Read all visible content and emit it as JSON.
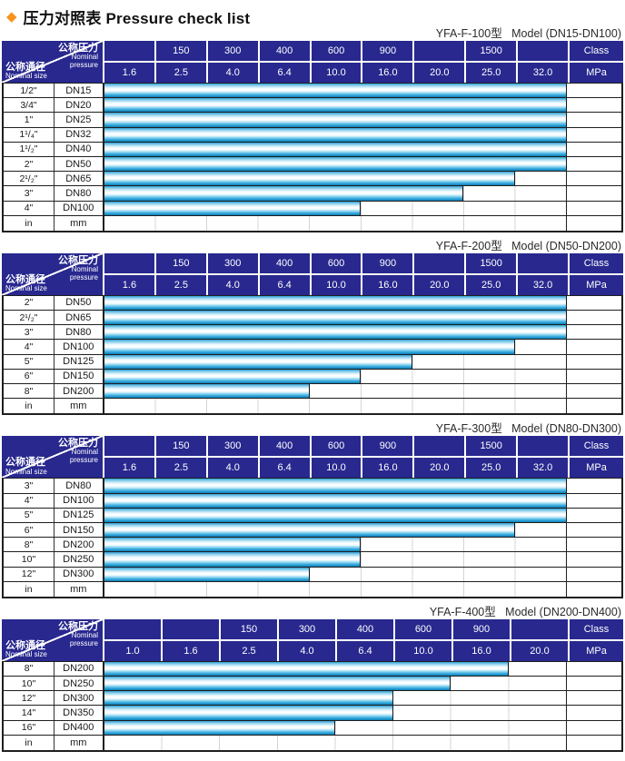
{
  "page": {
    "title": {
      "diamond_icon": "◆",
      "text": "压力对照表 Pressure check list"
    },
    "colors": {
      "header_navy": "#28288f",
      "bar_cyan": "#29a7e0",
      "bar_edge_dark": "#147bad",
      "accent_orange": "#f7941d",
      "grid_black": "#1f1f1f"
    }
  },
  "header_labels": {
    "pressure_cn": "公称压力",
    "pressure_en_1": "Nominal",
    "pressure_en_2": "pressure",
    "size_cn": "公称通径",
    "size_en": "Nominal size"
  },
  "tables": [
    {
      "subtitle": "YFA-F-100型   Model (DN15-DN100)",
      "class_row": [
        "",
        "150",
        "300",
        "400",
        "600",
        "900",
        "",
        "1500",
        "",
        "Class"
      ],
      "mpa_row": [
        "1.6",
        "2.5",
        "4.0",
        "6.4",
        "10.0",
        "16.0",
        "20.0",
        "25.0",
        "32.0",
        "MPa"
      ],
      "rows": [
        {
          "inch": "1/2\"",
          "dn": "DN15",
          "bar_cols": 9,
          "max_mpa": "32.0"
        },
        {
          "inch": "3/4\"",
          "dn": "DN20",
          "bar_cols": 9,
          "max_mpa": "32.0"
        },
        {
          "inch": "1\"",
          "dn": "DN25",
          "bar_cols": 9,
          "max_mpa": "32.0"
        },
        {
          "inch": "1¹/₄\"",
          "dn": "DN32",
          "bar_cols": 9,
          "max_mpa": "32.0"
        },
        {
          "inch": "1¹/₂\"",
          "dn": "DN40",
          "bar_cols": 9,
          "max_mpa": "32.0"
        },
        {
          "inch": "2\"",
          "dn": "DN50",
          "bar_cols": 9,
          "max_mpa": "32.0"
        },
        {
          "inch": "2¹/₂\"",
          "dn": "DN65",
          "bar_cols": 8,
          "max_mpa": "25.0"
        },
        {
          "inch": "3\"",
          "dn": "DN80",
          "bar_cols": 7,
          "max_mpa": "20.0"
        },
        {
          "inch": "4\"",
          "dn": "DN100",
          "bar_cols": 5,
          "max_mpa": "10.0"
        },
        {
          "inch": "in",
          "dn": "mm",
          "bar_cols": 0
        }
      ]
    },
    {
      "subtitle": "YFA-F-200型   Model (DN50-DN200)",
      "class_row": [
        "",
        "150",
        "300",
        "400",
        "600",
        "900",
        "",
        "1500",
        "",
        "Class"
      ],
      "mpa_row": [
        "1.6",
        "2.5",
        "4.0",
        "6.4",
        "10.0",
        "16.0",
        "20.0",
        "25.0",
        "32.0",
        "MPa"
      ],
      "rows": [
        {
          "inch": "2\"",
          "dn": "DN50",
          "bar_cols": 9,
          "max_mpa": "32.0"
        },
        {
          "inch": "2¹/₂\"",
          "dn": "DN65",
          "bar_cols": 9,
          "max_mpa": "32.0"
        },
        {
          "inch": "3\"",
          "dn": "DN80",
          "bar_cols": 9,
          "max_mpa": "32.0"
        },
        {
          "inch": "4\"",
          "dn": "DN100",
          "bar_cols": 8,
          "max_mpa": "25.0"
        },
        {
          "inch": "5\"",
          "dn": "DN125",
          "bar_cols": 6,
          "max_mpa": "16.0"
        },
        {
          "inch": "6\"",
          "dn": "DN150",
          "bar_cols": 5,
          "max_mpa": "10.0"
        },
        {
          "inch": "8\"",
          "dn": "DN200",
          "bar_cols": 4,
          "max_mpa": "6.4"
        },
        {
          "inch": "in",
          "dn": "mm",
          "bar_cols": 0
        }
      ]
    },
    {
      "subtitle": "YFA-F-300型   Model (DN80-DN300)",
      "class_row": [
        "",
        "150",
        "300",
        "400",
        "600",
        "900",
        "",
        "1500",
        "",
        "Class"
      ],
      "mpa_row": [
        "1.6",
        "2.5",
        "4.0",
        "6.4",
        "10.0",
        "16.0",
        "20.0",
        "25.0",
        "32.0",
        "MPa"
      ],
      "rows": [
        {
          "inch": "3\"",
          "dn": "DN80",
          "bar_cols": 9,
          "max_mpa": "32.0"
        },
        {
          "inch": "4\"",
          "dn": "DN100",
          "bar_cols": 9,
          "max_mpa": "32.0"
        },
        {
          "inch": "5\"",
          "dn": "DN125",
          "bar_cols": 9,
          "max_mpa": "32.0"
        },
        {
          "inch": "6\"",
          "dn": "DN150",
          "bar_cols": 8,
          "max_mpa": "25.0"
        },
        {
          "inch": "8\"",
          "dn": "DN200",
          "bar_cols": 5,
          "max_mpa": "10.0"
        },
        {
          "inch": "10\"",
          "dn": "DN250",
          "bar_cols": 5,
          "max_mpa": "10.0"
        },
        {
          "inch": "12\"",
          "dn": "DN300",
          "bar_cols": 4,
          "max_mpa": "6.4"
        },
        {
          "inch": "in",
          "dn": "mm",
          "bar_cols": 0
        }
      ]
    },
    {
      "subtitle": "YFA-F-400型   Model (DN200-DN400)",
      "class_row": [
        "",
        "",
        "150",
        "300",
        "400",
        "600",
        "900",
        "",
        "Class"
      ],
      "mpa_row": [
        "1.0",
        "1.6",
        "2.5",
        "4.0",
        "6.4",
        "10.0",
        "16.0",
        "20.0",
        "MPa"
      ],
      "rows": [
        {
          "inch": "8\"",
          "dn": "DN200",
          "bar_cols": 7,
          "max_mpa": "16.0"
        },
        {
          "inch": "10\"",
          "dn": "DN250",
          "bar_cols": 6,
          "max_mpa": "10.0"
        },
        {
          "inch": "12\"",
          "dn": "DN300",
          "bar_cols": 5,
          "max_mpa": "6.4"
        },
        {
          "inch": "14\"",
          "dn": "DN350",
          "bar_cols": 5,
          "max_mpa": "6.4"
        },
        {
          "inch": "16\"",
          "dn": "DN400",
          "bar_cols": 4,
          "max_mpa": "4.0"
        },
        {
          "inch": "in",
          "dn": "mm",
          "bar_cols": 0
        }
      ]
    }
  ]
}
